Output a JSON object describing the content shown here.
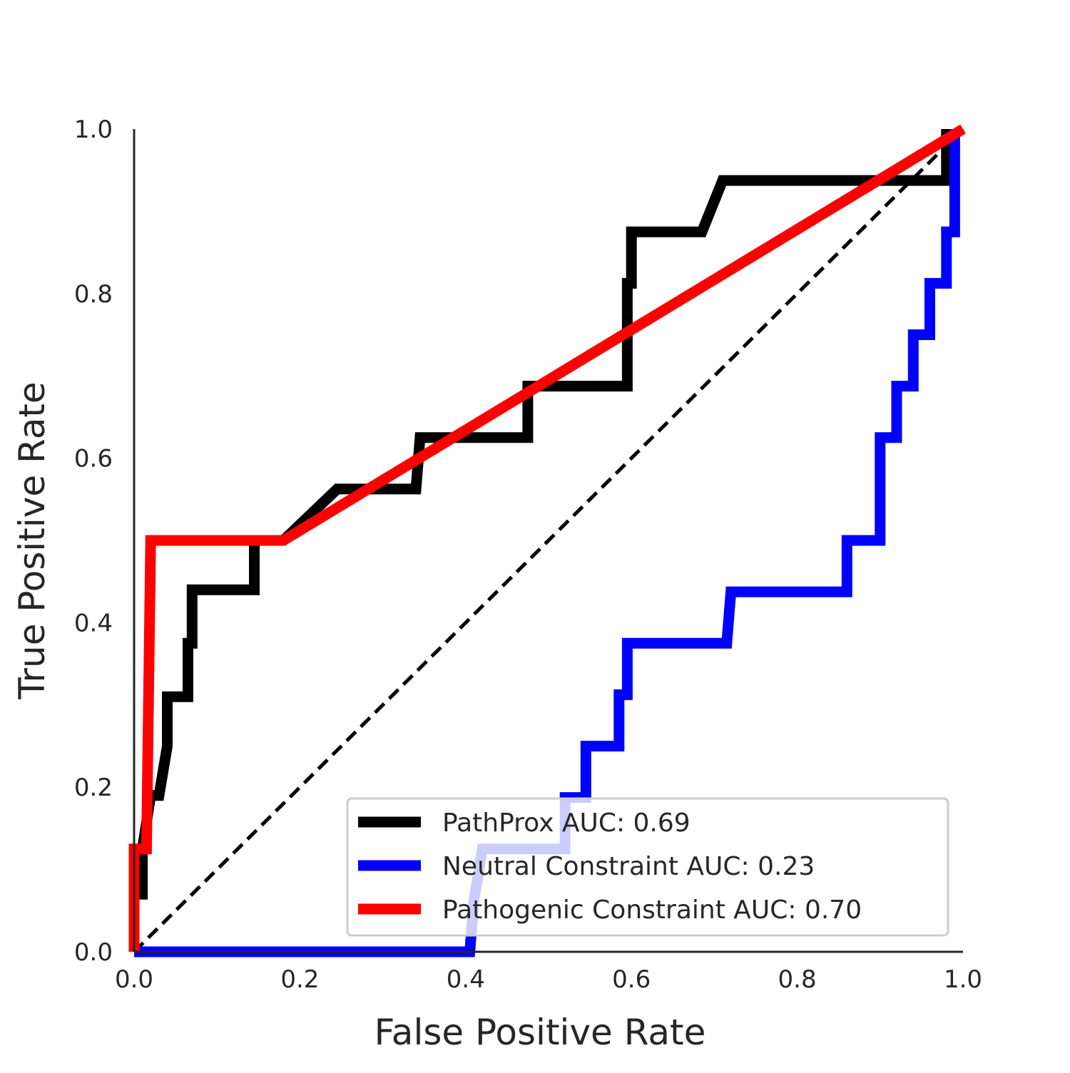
{
  "chart_data": {
    "type": "line",
    "title": "",
    "xlabel": "False Positive Rate",
    "ylabel": "True Positive Rate",
    "xlim": [
      0.0,
      1.0
    ],
    "ylim": [
      0.0,
      1.0
    ],
    "xticks": [
      "0.0",
      "0.2",
      "0.4",
      "0.6",
      "0.8",
      "1.0"
    ],
    "yticks": [
      "0.0",
      "0.2",
      "0.4",
      "0.6",
      "0.8",
      "1.0"
    ],
    "grid": false,
    "legend_position": "lower-right",
    "reference_line": {
      "style": "dashed",
      "color": "#000000",
      "x": [
        0.0,
        1.0
      ],
      "y": [
        0.0,
        1.0
      ]
    },
    "series": [
      {
        "name": "PathProx AUC:  0.69",
        "color": "#000000",
        "x": [
          0.0,
          0.0,
          0.01,
          0.01,
          0.02,
          0.03,
          0.04,
          0.04,
          0.065,
          0.065,
          0.07,
          0.07,
          0.145,
          0.145,
          0.18,
          0.245,
          0.34,
          0.345,
          0.345,
          0.475,
          0.475,
          0.595,
          0.595,
          0.6,
          0.6,
          0.685,
          0.71,
          0.98,
          0.98
        ],
        "y": [
          0.0,
          0.07,
          0.07,
          0.125,
          0.19,
          0.19,
          0.25,
          0.31,
          0.31,
          0.375,
          0.375,
          0.44,
          0.44,
          0.5,
          0.5,
          0.5625,
          0.5625,
          0.625,
          0.625,
          0.625,
          0.6875,
          0.6875,
          0.8125,
          0.8125,
          0.875,
          0.875,
          0.9375,
          0.9375,
          1.0
        ]
      },
      {
        "name": "Neutral Constraint AUC:  0.23",
        "color": "#0000ff",
        "x": [
          0.0,
          0.405,
          0.41,
          0.41,
          0.42,
          0.42,
          0.52,
          0.52,
          0.545,
          0.545,
          0.585,
          0.585,
          0.595,
          0.595,
          0.715,
          0.72,
          0.86,
          0.86,
          0.9,
          0.9,
          0.92,
          0.92,
          0.94,
          0.94,
          0.96,
          0.96,
          0.98,
          0.98,
          0.99,
          0.99
        ],
        "y": [
          0.0,
          0.0,
          0.0625,
          0.0625,
          0.125,
          0.125,
          0.125,
          0.1875,
          0.1875,
          0.25,
          0.25,
          0.3125,
          0.3125,
          0.375,
          0.375,
          0.4375,
          0.4375,
          0.5,
          0.5,
          0.625,
          0.625,
          0.6875,
          0.6875,
          0.75,
          0.75,
          0.8125,
          0.8125,
          0.875,
          0.875,
          1.0
        ]
      },
      {
        "name": "Pathogenic Constraint AUC:  0.70",
        "color": "#ff0000",
        "x": [
          0.0,
          0.0,
          0.015,
          0.02,
          0.18,
          1.0
        ],
        "y": [
          0.0,
          0.125,
          0.125,
          0.5,
          0.5,
          1.0
        ]
      }
    ]
  }
}
